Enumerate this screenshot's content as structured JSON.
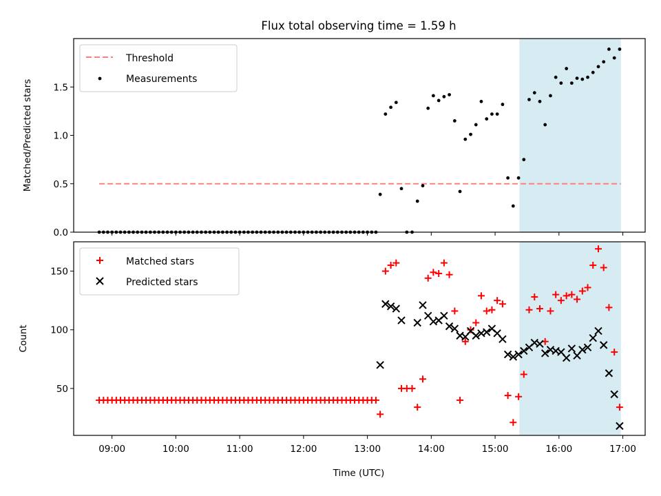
{
  "title": "Flux total observing time = 1.59 h",
  "chart_data": [
    {
      "type": "scatter",
      "ylabel": "Matched/Predicted stars",
      "ylim": [
        0,
        2.0
      ],
      "yticks": [
        "0.0",
        "0.5",
        "1.0",
        "1.5"
      ],
      "ytick_values": [
        0,
        0.5,
        1.0,
        1.5
      ],
      "xlim": [
        8.4,
        17.35
      ],
      "grid": false,
      "legend": {
        "position": "top-left",
        "entries": [
          "Threshold",
          "Measurements"
        ]
      },
      "threshold": {
        "name": "Threshold",
        "value": 0.5,
        "x_start": 8.8,
        "x_end": 16.97,
        "color": "#ff7f7f"
      },
      "highlight_span": [
        15.38,
        16.97
      ],
      "series": [
        {
          "name": "Measurements",
          "color": "#000000",
          "x": [
            8.8,
            8.867,
            8.933,
            9.0,
            9.067,
            9.133,
            9.2,
            9.267,
            9.333,
            9.4,
            9.467,
            9.533,
            9.6,
            9.667,
            9.733,
            9.8,
            9.867,
            9.933,
            10.0,
            10.067,
            10.133,
            10.2,
            10.267,
            10.333,
            10.4,
            10.467,
            10.533,
            10.6,
            10.667,
            10.733,
            10.8,
            10.867,
            10.933,
            11.0,
            11.067,
            11.133,
            11.2,
            11.267,
            11.333,
            11.4,
            11.467,
            11.533,
            11.6,
            11.667,
            11.733,
            11.8,
            11.867,
            11.933,
            12.0,
            12.067,
            12.133,
            12.2,
            12.267,
            12.333,
            12.4,
            12.467,
            12.533,
            12.6,
            12.667,
            12.733,
            12.8,
            12.867,
            12.933,
            13.0,
            13.067,
            13.133,
            13.2,
            13.283,
            13.367,
            13.45,
            13.533,
            13.617,
            13.7,
            13.783,
            13.867,
            13.95,
            14.033,
            14.117,
            14.2,
            14.283,
            14.367,
            14.45,
            14.533,
            14.617,
            14.7,
            14.783,
            14.867,
            14.95,
            15.033,
            15.117,
            15.2,
            15.283,
            15.367,
            15.45,
            15.533,
            15.617,
            15.7,
            15.783,
            15.867,
            15.95,
            16.033,
            16.117,
            16.2,
            16.283,
            16.367,
            16.45,
            16.533,
            16.617,
            16.7,
            16.783,
            16.867,
            16.95
          ],
          "y": [
            0,
            0,
            0,
            0,
            0,
            0,
            0,
            0,
            0,
            0,
            0,
            0,
            0,
            0,
            0,
            0,
            0,
            0,
            0,
            0,
            0,
            0,
            0,
            0,
            0,
            0,
            0,
            0,
            0,
            0,
            0,
            0,
            0,
            0,
            0,
            0,
            0,
            0,
            0,
            0,
            0,
            0,
            0,
            0,
            0,
            0,
            0,
            0,
            0,
            0,
            0,
            0,
            0,
            0,
            0,
            0,
            0,
            0,
            0,
            0,
            0,
            0,
            0,
            0,
            0,
            0,
            0.39,
            1.22,
            1.29,
            1.34,
            0.45,
            0,
            0,
            0.32,
            0.48,
            1.28,
            1.41,
            1.36,
            1.4,
            1.42,
            1.15,
            0.42,
            0.96,
            1.01,
            1.11,
            1.35,
            1.17,
            1.22,
            1.22,
            1.32,
            0.56,
            0.27,
            0.56,
            0.75,
            1.37,
            1.44,
            1.35,
            1.11,
            1.41,
            1.6,
            1.54,
            1.69,
            1.54,
            1.59,
            1.58,
            1.6,
            1.65,
            1.71,
            1.76,
            1.89,
            1.8,
            1.89
          ]
        }
      ]
    },
    {
      "type": "scatter",
      "xlabel": "Time (UTC)",
      "ylabel": "Count",
      "ylim": [
        10,
        175
      ],
      "yticks": [
        "50",
        "100",
        "150"
      ],
      "ytick_values": [
        50,
        100,
        150
      ],
      "xlim": [
        8.4,
        17.35
      ],
      "xticks": [
        "09:00",
        "10:00",
        "11:00",
        "12:00",
        "13:00",
        "14:00",
        "15:00",
        "16:00",
        "17:00"
      ],
      "xtick_values": [
        9,
        10,
        11,
        12,
        13,
        14,
        15,
        16,
        17
      ],
      "grid": false,
      "legend": {
        "position": "top-left",
        "entries": [
          "Matched stars",
          "Predicted stars"
        ]
      },
      "highlight_span": [
        15.38,
        16.97
      ],
      "series": [
        {
          "name": "Matched stars",
          "marker": "plus",
          "color": "#ff0000",
          "x": [
            8.8,
            8.867,
            8.933,
            9.0,
            9.067,
            9.133,
            9.2,
            9.267,
            9.333,
            9.4,
            9.467,
            9.533,
            9.6,
            9.667,
            9.733,
            9.8,
            9.867,
            9.933,
            10.0,
            10.067,
            10.133,
            10.2,
            10.267,
            10.333,
            10.4,
            10.467,
            10.533,
            10.6,
            10.667,
            10.733,
            10.8,
            10.867,
            10.933,
            11.0,
            11.067,
            11.133,
            11.2,
            11.267,
            11.333,
            11.4,
            11.467,
            11.533,
            11.6,
            11.667,
            11.733,
            11.8,
            11.867,
            11.933,
            12.0,
            12.067,
            12.133,
            12.2,
            12.267,
            12.333,
            12.4,
            12.467,
            12.533,
            12.6,
            12.667,
            12.733,
            12.8,
            12.867,
            12.933,
            13.0,
            13.067,
            13.133,
            13.2,
            13.283,
            13.367,
            13.45,
            13.533,
            13.617,
            13.7,
            13.783,
            13.867,
            13.95,
            14.033,
            14.117,
            14.2,
            14.283,
            14.367,
            14.45,
            14.533,
            14.617,
            14.7,
            14.783,
            14.867,
            14.95,
            15.033,
            15.117,
            15.2,
            15.283,
            15.367,
            15.45,
            15.533,
            15.617,
            15.7,
            15.783,
            15.867,
            15.95,
            16.033,
            16.117,
            16.2,
            16.283,
            16.367,
            16.45,
            16.533,
            16.617,
            16.7,
            16.783,
            16.867,
            16.95
          ],
          "y": [
            40,
            40,
            40,
            40,
            40,
            40,
            40,
            40,
            40,
            40,
            40,
            40,
            40,
            40,
            40,
            40,
            40,
            40,
            40,
            40,
            40,
            40,
            40,
            40,
            40,
            40,
            40,
            40,
            40,
            40,
            40,
            40,
            40,
            40,
            40,
            40,
            40,
            40,
            40,
            40,
            40,
            40,
            40,
            40,
            40,
            40,
            40,
            40,
            40,
            40,
            40,
            40,
            40,
            40,
            40,
            40,
            40,
            40,
            40,
            40,
            40,
            40,
            40,
            40,
            40,
            40,
            28,
            150,
            155,
            157,
            50,
            50,
            50,
            34,
            58,
            144,
            149,
            148,
            157,
            147,
            116,
            40,
            90,
            100,
            106,
            129,
            116,
            117,
            125,
            122,
            44,
            21,
            43,
            62,
            117,
            128,
            118,
            90,
            116,
            130,
            125,
            129,
            130,
            126,
            133,
            136,
            155,
            169,
            153,
            119,
            81,
            34
          ]
        },
        {
          "name": "Predicted stars",
          "marker": "x",
          "color": "#000000",
          "x": [
            13.2,
            13.283,
            13.367,
            13.45,
            13.533,
            13.783,
            13.867,
            13.95,
            14.033,
            14.117,
            14.2,
            14.283,
            14.367,
            14.45,
            14.533,
            14.617,
            14.7,
            14.783,
            14.867,
            14.95,
            15.033,
            15.117,
            15.2,
            15.283,
            15.367,
            15.45,
            15.533,
            15.617,
            15.7,
            15.783,
            15.867,
            15.95,
            16.033,
            16.117,
            16.2,
            16.283,
            16.367,
            16.45,
            16.533,
            16.617,
            16.7,
            16.783,
            16.867,
            16.95
          ],
          "y": [
            70,
            122,
            120,
            118,
            108,
            106,
            121,
            112,
            107,
            108,
            112,
            103,
            101,
            95,
            94,
            99,
            95,
            97,
            98,
            101,
            97,
            92,
            79,
            77,
            79,
            82,
            85,
            89,
            88,
            80,
            83,
            82,
            81,
            76,
            84,
            78,
            83,
            85,
            93,
            99,
            87,
            63,
            45,
            18
          ]
        }
      ]
    }
  ]
}
